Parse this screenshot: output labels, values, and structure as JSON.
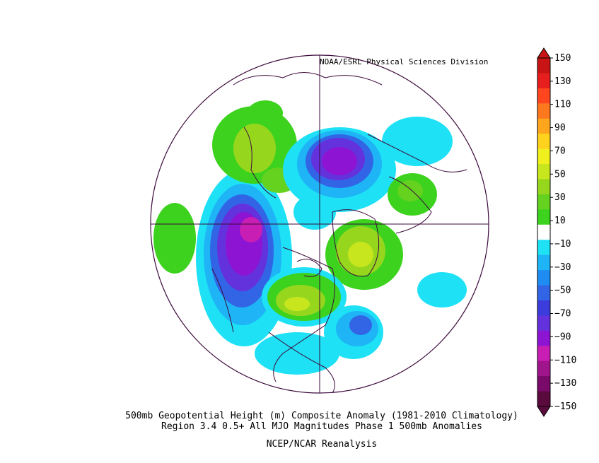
{
  "credit": "NOAA/ESRL Physical Sciences Division",
  "caption_line1": "500mb Geopotential Height (m) Composite Anomaly (1981-2010 Climatology)",
  "caption_line2": "Region 3.4 0.5+ All MJO Magnitudes Phase 1 500mb Anomalies",
  "caption_line3": "NCEP/NCAR Reanalysis",
  "colorbar": {
    "labels": [
      "150",
      "130",
      "110",
      "90",
      "70",
      "50",
      "30",
      "10",
      "-10",
      "-30",
      "-50",
      "-70",
      "-90",
      "-110",
      "-130",
      "-150"
    ],
    "colors": [
      "#5a0a3c",
      "#7a0a6a",
      "#a0148c",
      "#c81eb4",
      "#8c14d2",
      "#6432dc",
      "#3c3cdc",
      "#3264e6",
      "#1e8cf0",
      "#1eb4f5",
      "#1ee1f5",
      "#ffffff",
      "#3cd21e",
      "#64d21e",
      "#96d71e",
      "#c8e61e",
      "#f0f01e",
      "#ffd21e",
      "#ffa51e",
      "#ff781e",
      "#ff461e",
      "#e61e1e",
      "#c81414"
    ]
  }
}
